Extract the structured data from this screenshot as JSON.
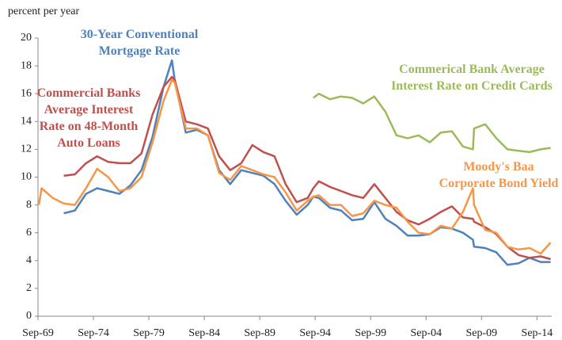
{
  "chart_data": {
    "type": "line",
    "y_label": "percent per year",
    "x": [
      1969.75,
      1970,
      1971,
      1972,
      1973,
      1974,
      1975,
      1976,
      1977,
      1978,
      1979,
      1980,
      1981,
      1981.75,
      1982,
      1983,
      1984,
      1985,
      1986,
      1987,
      1988,
      1989,
      1990,
      1991,
      1992,
      1993,
      1994,
      1994.5,
      1995,
      1996,
      1997,
      1998,
      1999,
      2000,
      2001,
      2002,
      2003,
      2004,
      2005,
      2006,
      2007,
      2008,
      2008.9,
      2009,
      2010,
      2011,
      2012,
      2013,
      2014,
      2015,
      2015.9
    ],
    "series": [
      {
        "color": "#4f81bd",
        "values": [
          null,
          null,
          null,
          7.4,
          7.6,
          8.8,
          9.2,
          9.0,
          8.8,
          9.4,
          10.5,
          12.9,
          16.5,
          18.4,
          17.0,
          13.2,
          13.4,
          13.0,
          10.5,
          9.5,
          10.5,
          10.3,
          10.1,
          9.5,
          8.3,
          7.3,
          8.0,
          8.6,
          8.5,
          7.8,
          7.6,
          6.9,
          7.0,
          8.2,
          7.0,
          6.5,
          5.8,
          5.8,
          5.9,
          6.4,
          6.3,
          6.0,
          5.5,
          5.0,
          4.9,
          4.6,
          3.7,
          3.8,
          4.2,
          3.9,
          3.9
        ]
      },
      {
        "color": "#c0504d",
        "values": [
          null,
          null,
          null,
          10.1,
          10.2,
          11.0,
          11.5,
          11.1,
          11.0,
          11.0,
          11.7,
          14.5,
          16.5,
          17.2,
          17.0,
          14.0,
          13.8,
          13.5,
          11.5,
          10.5,
          11.0,
          12.3,
          11.8,
          11.5,
          9.5,
          8.2,
          8.5,
          9.2,
          9.7,
          9.3,
          9.0,
          8.7,
          8.5,
          9.5,
          8.5,
          7.5,
          6.9,
          6.6,
          7.0,
          7.5,
          7.9,
          7.1,
          7.0,
          6.8,
          6.4,
          5.9,
          5.0,
          4.4,
          4.2,
          4.3,
          4.1
        ]
      },
      {
        "color": "#9bbb59",
        "values": [
          null,
          null,
          null,
          null,
          null,
          null,
          null,
          null,
          null,
          null,
          null,
          null,
          null,
          null,
          null,
          null,
          null,
          null,
          null,
          null,
          null,
          null,
          null,
          null,
          null,
          null,
          null,
          15.7,
          16.0,
          15.6,
          15.8,
          15.7,
          15.3,
          15.8,
          14.7,
          13.0,
          12.8,
          13.0,
          12.5,
          13.2,
          13.3,
          12.2,
          12.0,
          13.5,
          13.8,
          12.8,
          12.0,
          11.9,
          11.8,
          12.0,
          12.1
        ]
      },
      {
        "color": "#f79646",
        "values": [
          8.0,
          9.2,
          8.5,
          8.1,
          8.0,
          9.2,
          10.6,
          10.0,
          9.0,
          9.2,
          10.0,
          12.5,
          15.5,
          17.0,
          16.8,
          13.5,
          13.5,
          13.0,
          10.3,
          9.8,
          10.8,
          10.5,
          10.2,
          10.0,
          8.9,
          7.6,
          8.3,
          8.6,
          8.7,
          8.0,
          8.0,
          7.2,
          7.4,
          8.3,
          8.0,
          7.8,
          6.8,
          6.0,
          5.9,
          6.5,
          6.3,
          7.5,
          9.2,
          8.0,
          6.2,
          6.0,
          5.0,
          4.8,
          4.9,
          4.5,
          5.3
        ]
      }
    ],
    "annotations": [
      {
        "lines": [
          "30-Year Conventional",
          "Mortgage Rate"
        ],
        "color": "#4f81bd"
      },
      {
        "lines": [
          "Commercial Banks",
          "Average Interest",
          "Rate on 48-Month",
          "Auto Loans"
        ],
        "color": "#c0504d"
      },
      {
        "lines": [
          "Commerical Bank Average",
          "Interest Rate on Credit Cards"
        ],
        "color": "#9bbb59"
      },
      {
        "lines": [
          "Moody's Baa",
          "Corporate Bond Yield"
        ],
        "color": "#f79646"
      }
    ],
    "xlim": [
      1969.67,
      2016.0
    ],
    "xticks": [
      {
        "value": 1969.67,
        "label": "Sep-69"
      },
      {
        "value": 1974.67,
        "label": "Sep-74"
      },
      {
        "value": 1979.67,
        "label": "Sep-79"
      },
      {
        "value": 1984.67,
        "label": "Sep-84"
      },
      {
        "value": 1989.67,
        "label": "Sep-89"
      },
      {
        "value": 1994.67,
        "label": "Sep-94"
      },
      {
        "value": 1999.67,
        "label": "Sep-99"
      },
      {
        "value": 2004.67,
        "label": "Sep-04"
      },
      {
        "value": 2009.67,
        "label": "Sep-09"
      },
      {
        "value": 2014.67,
        "label": "Sep-14"
      }
    ],
    "ylim": [
      0,
      20
    ],
    "yticks": [
      0,
      2,
      4,
      6,
      8,
      10,
      12,
      14,
      16,
      18,
      20
    ],
    "grid": false
  }
}
